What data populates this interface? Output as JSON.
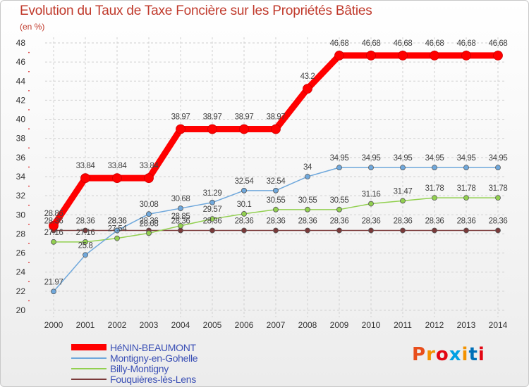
{
  "title": "Evolution du Taux de Taxe Foncière sur les Propriétés Bâties",
  "unit_label": "(en %)",
  "logo_text": "Proxiti",
  "logo_colors": [
    "#e84e1b",
    "#f39200",
    "#e30613",
    "#00a0e3",
    "#f39200",
    "#0070b8",
    "#e30613"
  ],
  "chart_data": {
    "type": "line",
    "x": [
      "2000",
      "2001",
      "2002",
      "2003",
      "2004",
      "2005",
      "2006",
      "2007",
      "2008",
      "2009",
      "2010",
      "2011",
      "2012",
      "2013",
      "2014"
    ],
    "ylim": [
      20,
      48
    ],
    "yticks": [
      20,
      22,
      24,
      26,
      28,
      30,
      32,
      34,
      36,
      38,
      40,
      42,
      44,
      46,
      48
    ],
    "grid": true,
    "series": [
      {
        "name": "HéNIN-BEAUMONT",
        "color": "#ff0000",
        "width": 9,
        "values": [
          28.86,
          33.84,
          33.84,
          33.84,
          38.97,
          38.97,
          38.97,
          38.97,
          43.2,
          46.68,
          46.68,
          46.68,
          46.68,
          46.68,
          46.68
        ],
        "labels": [
          "28.86",
          "33.84",
          "33.84",
          "33.84",
          "38.97",
          "38.97",
          "38.97",
          "38.97",
          "43.2",
          "46.68",
          "46.68",
          "46.68",
          "46.68",
          "46.68",
          "46.68"
        ]
      },
      {
        "name": "Montigny-en-Gohelle",
        "color": "#6fa8dc",
        "width": 1.5,
        "values": [
          21.97,
          25.8,
          28.36,
          30.08,
          30.68,
          31.29,
          32.54,
          32.54,
          34,
          34.95,
          34.95,
          34.95,
          34.95,
          34.95,
          34.95
        ],
        "labels": [
          "21.97",
          "25.8",
          "28.36",
          "30.08",
          "30.68",
          "31.29",
          "32.54",
          "32.54",
          "34",
          "34.95",
          "34.95",
          "34.95",
          "34.95",
          "34.95",
          "34.95"
        ]
      },
      {
        "name": "Billy-Montigny",
        "color": "#92d050",
        "width": 1.5,
        "values": [
          27.16,
          27.16,
          27.54,
          28.08,
          28.85,
          29.57,
          30.1,
          30.55,
          30.55,
          30.55,
          31.16,
          31.47,
          31.78,
          31.78,
          31.78
        ],
        "labels": [
          "27.16",
          "27.16",
          "27.54",
          "28.08",
          "28.85",
          "29.57",
          "30.1",
          "30.55",
          "30.55",
          "30.55",
          "31.16",
          "31.47",
          "31.78",
          "31.78",
          "31.78"
        ]
      },
      {
        "name": "Fouquières-lès-Lens",
        "color": "#7b3b3b",
        "width": 1.5,
        "values": [
          28.36,
          28.36,
          28.36,
          28.36,
          28.36,
          28.36,
          28.36,
          28.36,
          28.36,
          28.36,
          28.36,
          28.36,
          28.36,
          28.36,
          28.36
        ],
        "labels": [
          "28.36",
          "28.36",
          "28.36",
          "28.36",
          "28.36",
          "28.36",
          "28.36",
          "28.36",
          "28.36",
          "28.36",
          "28.36",
          "28.36",
          "28.36",
          "28.36",
          "28.36"
        ]
      }
    ]
  }
}
